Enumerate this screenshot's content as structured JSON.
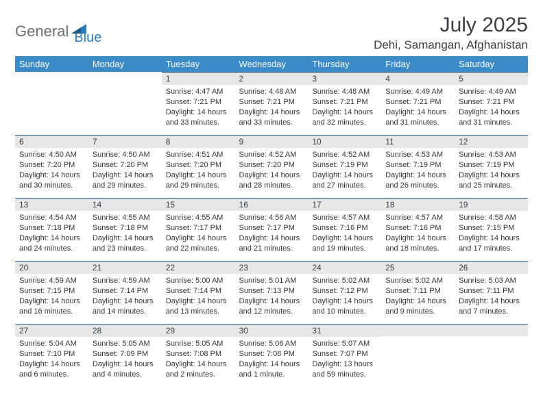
{
  "logo": {
    "part1": "General",
    "part2": "Blue"
  },
  "title": "July 2025",
  "location": "Dehi, Samangan, Afghanistan",
  "colors": {
    "header_bg": "#3b8bc8",
    "header_text": "#ffffff",
    "daynum_bg": "#e7e7e7",
    "border": "#2c5f86",
    "text": "#353535",
    "logo_gray": "#6a6f73",
    "logo_blue": "#2b7bbf"
  },
  "weekdays": [
    "Sunday",
    "Monday",
    "Tuesday",
    "Wednesday",
    "Thursday",
    "Friday",
    "Saturday"
  ],
  "first_day_index": 2,
  "days": [
    {
      "n": "1",
      "sunrise": "Sunrise: 4:47 AM",
      "sunset": "Sunset: 7:21 PM",
      "daylight": "Daylight: 14 hours and 33 minutes."
    },
    {
      "n": "2",
      "sunrise": "Sunrise: 4:48 AM",
      "sunset": "Sunset: 7:21 PM",
      "daylight": "Daylight: 14 hours and 33 minutes."
    },
    {
      "n": "3",
      "sunrise": "Sunrise: 4:48 AM",
      "sunset": "Sunset: 7:21 PM",
      "daylight": "Daylight: 14 hours and 32 minutes."
    },
    {
      "n": "4",
      "sunrise": "Sunrise: 4:49 AM",
      "sunset": "Sunset: 7:21 PM",
      "daylight": "Daylight: 14 hours and 31 minutes."
    },
    {
      "n": "5",
      "sunrise": "Sunrise: 4:49 AM",
      "sunset": "Sunset: 7:21 PM",
      "daylight": "Daylight: 14 hours and 31 minutes."
    },
    {
      "n": "6",
      "sunrise": "Sunrise: 4:50 AM",
      "sunset": "Sunset: 7:20 PM",
      "daylight": "Daylight: 14 hours and 30 minutes."
    },
    {
      "n": "7",
      "sunrise": "Sunrise: 4:50 AM",
      "sunset": "Sunset: 7:20 PM",
      "daylight": "Daylight: 14 hours and 29 minutes."
    },
    {
      "n": "8",
      "sunrise": "Sunrise: 4:51 AM",
      "sunset": "Sunset: 7:20 PM",
      "daylight": "Daylight: 14 hours and 29 minutes."
    },
    {
      "n": "9",
      "sunrise": "Sunrise: 4:52 AM",
      "sunset": "Sunset: 7:20 PM",
      "daylight": "Daylight: 14 hours and 28 minutes."
    },
    {
      "n": "10",
      "sunrise": "Sunrise: 4:52 AM",
      "sunset": "Sunset: 7:19 PM",
      "daylight": "Daylight: 14 hours and 27 minutes."
    },
    {
      "n": "11",
      "sunrise": "Sunrise: 4:53 AM",
      "sunset": "Sunset: 7:19 PM",
      "daylight": "Daylight: 14 hours and 26 minutes."
    },
    {
      "n": "12",
      "sunrise": "Sunrise: 4:53 AM",
      "sunset": "Sunset: 7:19 PM",
      "daylight": "Daylight: 14 hours and 25 minutes."
    },
    {
      "n": "13",
      "sunrise": "Sunrise: 4:54 AM",
      "sunset": "Sunset: 7:18 PM",
      "daylight": "Daylight: 14 hours and 24 minutes."
    },
    {
      "n": "14",
      "sunrise": "Sunrise: 4:55 AM",
      "sunset": "Sunset: 7:18 PM",
      "daylight": "Daylight: 14 hours and 23 minutes."
    },
    {
      "n": "15",
      "sunrise": "Sunrise: 4:55 AM",
      "sunset": "Sunset: 7:17 PM",
      "daylight": "Daylight: 14 hours and 22 minutes."
    },
    {
      "n": "16",
      "sunrise": "Sunrise: 4:56 AM",
      "sunset": "Sunset: 7:17 PM",
      "daylight": "Daylight: 14 hours and 21 minutes."
    },
    {
      "n": "17",
      "sunrise": "Sunrise: 4:57 AM",
      "sunset": "Sunset: 7:16 PM",
      "daylight": "Daylight: 14 hours and 19 minutes."
    },
    {
      "n": "18",
      "sunrise": "Sunrise: 4:57 AM",
      "sunset": "Sunset: 7:16 PM",
      "daylight": "Daylight: 14 hours and 18 minutes."
    },
    {
      "n": "19",
      "sunrise": "Sunrise: 4:58 AM",
      "sunset": "Sunset: 7:15 PM",
      "daylight": "Daylight: 14 hours and 17 minutes."
    },
    {
      "n": "20",
      "sunrise": "Sunrise: 4:59 AM",
      "sunset": "Sunset: 7:15 PM",
      "daylight": "Daylight: 14 hours and 16 minutes."
    },
    {
      "n": "21",
      "sunrise": "Sunrise: 4:59 AM",
      "sunset": "Sunset: 7:14 PM",
      "daylight": "Daylight: 14 hours and 14 minutes."
    },
    {
      "n": "22",
      "sunrise": "Sunrise: 5:00 AM",
      "sunset": "Sunset: 7:14 PM",
      "daylight": "Daylight: 14 hours and 13 minutes."
    },
    {
      "n": "23",
      "sunrise": "Sunrise: 5:01 AM",
      "sunset": "Sunset: 7:13 PM",
      "daylight": "Daylight: 14 hours and 12 minutes."
    },
    {
      "n": "24",
      "sunrise": "Sunrise: 5:02 AM",
      "sunset": "Sunset: 7:12 PM",
      "daylight": "Daylight: 14 hours and 10 minutes."
    },
    {
      "n": "25",
      "sunrise": "Sunrise: 5:02 AM",
      "sunset": "Sunset: 7:11 PM",
      "daylight": "Daylight: 14 hours and 9 minutes."
    },
    {
      "n": "26",
      "sunrise": "Sunrise: 5:03 AM",
      "sunset": "Sunset: 7:11 PM",
      "daylight": "Daylight: 14 hours and 7 minutes."
    },
    {
      "n": "27",
      "sunrise": "Sunrise: 5:04 AM",
      "sunset": "Sunset: 7:10 PM",
      "daylight": "Daylight: 14 hours and 6 minutes."
    },
    {
      "n": "28",
      "sunrise": "Sunrise: 5:05 AM",
      "sunset": "Sunset: 7:09 PM",
      "daylight": "Daylight: 14 hours and 4 minutes."
    },
    {
      "n": "29",
      "sunrise": "Sunrise: 5:05 AM",
      "sunset": "Sunset: 7:08 PM",
      "daylight": "Daylight: 14 hours and 2 minutes."
    },
    {
      "n": "30",
      "sunrise": "Sunrise: 5:06 AM",
      "sunset": "Sunset: 7:08 PM",
      "daylight": "Daylight: 14 hours and 1 minute."
    },
    {
      "n": "31",
      "sunrise": "Sunrise: 5:07 AM",
      "sunset": "Sunset: 7:07 PM",
      "daylight": "Daylight: 13 hours and 59 minutes."
    }
  ]
}
